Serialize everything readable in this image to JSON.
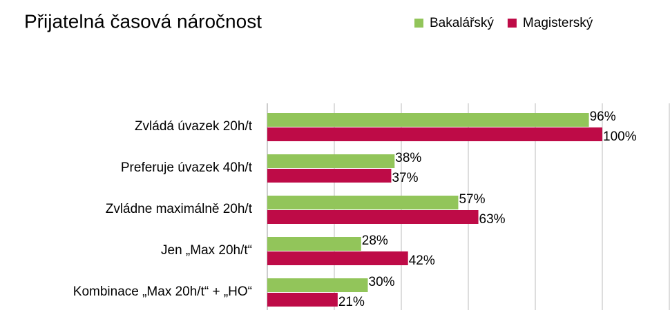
{
  "chart_data": {
    "type": "hbar",
    "title": "Přijatelná časová náročnost",
    "categories": [
      "Zvládá úvazek 20h/t",
      "Preferuje úvazek 40h/t",
      "Zvládne maximálně 20h/t",
      "Jen „Max 20h/t“",
      "Kombinace „Max 20h/t“ + „HO“"
    ],
    "series": [
      {
        "name": "Bakalářský",
        "color": "#92c55a",
        "values": [
          96,
          38,
          57,
          28,
          30
        ],
        "value_labels": [
          "96%",
          "38%",
          "57%",
          "28%",
          "30%"
        ]
      },
      {
        "name": "Magisterský",
        "color": "#be0b47",
        "values": [
          100,
          37,
          63,
          42,
          21
        ],
        "value_labels": [
          "100%",
          "37%",
          "63%",
          "42%",
          "21%"
        ]
      }
    ],
    "xlim": [
      0,
      120
    ],
    "xticks": [
      0,
      20,
      40,
      60,
      80,
      100,
      120
    ],
    "grid": true,
    "legend": "top-right"
  }
}
